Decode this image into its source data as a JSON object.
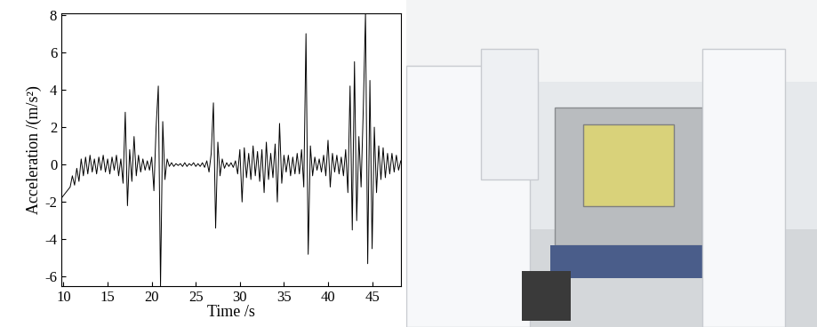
{
  "chart_data": {
    "type": "line",
    "x_label": "Time /s",
    "y_label": "Acceleration /(m/s²)",
    "color": "#000000",
    "xlim": [
      9.75,
      48.25
    ],
    "xticks": [
      10,
      15,
      20,
      25,
      30,
      35,
      40,
      45
    ],
    "ylim": [
      -6.5,
      8.1
    ],
    "yticks": [
      -6,
      -4,
      -2,
      0,
      2,
      4,
      6,
      8
    ],
    "grid": false,
    "x": [
      9.75,
      10.0,
      10.25,
      10.5,
      10.75,
      11.0,
      11.25,
      11.5,
      11.75,
      12.0,
      12.25,
      12.5,
      12.75,
      13.0,
      13.25,
      13.5,
      13.75,
      14.0,
      14.25,
      14.5,
      14.75,
      15.0,
      15.25,
      15.5,
      15.75,
      16.0,
      16.25,
      16.5,
      16.75,
      17.0,
      17.25,
      17.5,
      17.75,
      18.0,
      18.25,
      18.5,
      18.75,
      19.0,
      19.25,
      19.5,
      19.75,
      20.0,
      20.25,
      20.5,
      20.75,
      21.0,
      21.25,
      21.5,
      21.75,
      22.0,
      22.25,
      22.5,
      22.75,
      23.0,
      23.25,
      23.5,
      23.75,
      24.0,
      24.25,
      24.5,
      24.75,
      25.0,
      25.25,
      25.5,
      25.75,
      26.0,
      26.25,
      26.5,
      26.75,
      27.0,
      27.25,
      27.5,
      27.75,
      28.0,
      28.25,
      28.5,
      28.75,
      29.0,
      29.25,
      29.5,
      29.75,
      30.0,
      30.25,
      30.5,
      30.75,
      31.0,
      31.25,
      31.5,
      31.75,
      32.0,
      32.25,
      32.5,
      32.75,
      33.0,
      33.25,
      33.5,
      33.75,
      34.0,
      34.25,
      34.5,
      34.75,
      35.0,
      35.25,
      35.5,
      35.75,
      36.0,
      36.25,
      36.5,
      36.75,
      37.0,
      37.25,
      37.5,
      37.75,
      38.0,
      38.25,
      38.5,
      38.75,
      39.0,
      39.25,
      39.5,
      39.75,
      40.0,
      40.25,
      40.5,
      40.75,
      41.0,
      41.25,
      41.5,
      41.75,
      42.0,
      42.25,
      42.5,
      42.75,
      43.0,
      43.25,
      43.5,
      43.75,
      44.0,
      44.25,
      44.5,
      44.75,
      45.0,
      45.25,
      45.5,
      45.75,
      46.0,
      46.25,
      46.5,
      46.75,
      47.0,
      47.25,
      47.5,
      47.75,
      48.0,
      48.25
    ],
    "values": [
      -1.8,
      -1.65,
      -1.5,
      -1.35,
      -1.2,
      -0.6,
      -1.1,
      -0.2,
      -0.9,
      0.3,
      -0.6,
      0.4,
      -0.5,
      0.5,
      -0.4,
      0.3,
      -0.5,
      0.4,
      -0.3,
      0.5,
      -0.4,
      0.3,
      -0.5,
      0.4,
      -0.3,
      0.5,
      -0.6,
      0.3,
      -1.0,
      2.8,
      -2.2,
      0.8,
      -0.9,
      1.5,
      -0.6,
      0.5,
      -0.4,
      0.3,
      -0.3,
      0.2,
      -0.3,
      0.4,
      -1.4,
      2.0,
      4.2,
      -6.5,
      2.3,
      -0.8,
      0.3,
      -0.1,
      0.1,
      -0.1,
      0.05,
      -0.05,
      0.05,
      -0.1,
      0.1,
      -0.1,
      0.05,
      -0.05,
      0.1,
      -0.1,
      0.05,
      -0.1,
      0.1,
      -0.15,
      0.2,
      -0.4,
      0.6,
      3.3,
      -3.4,
      1.2,
      -0.6,
      0.3,
      -0.2,
      0.1,
      -0.1,
      0.1,
      -0.15,
      0.2,
      -0.5,
      0.8,
      -2.0,
      0.9,
      -0.7,
      0.6,
      -0.8,
      1.0,
      -0.6,
      0.7,
      -0.9,
      0.8,
      -1.5,
      1.2,
      -0.8,
      0.6,
      -0.7,
      1.1,
      -2.0,
      2.2,
      -1.0,
      0.5,
      -0.4,
      0.5,
      -0.6,
      0.4,
      -0.5,
      0.6,
      -0.5,
      0.8,
      -1.2,
      7.0,
      -4.8,
      1.0,
      -0.6,
      0.4,
      -0.3,
      0.3,
      -0.4,
      0.5,
      -0.6,
      1.3,
      -1.2,
      0.6,
      -0.4,
      0.5,
      -0.5,
      0.4,
      -0.6,
      0.8,
      -1.5,
      4.2,
      -3.5,
      5.5,
      -3.0,
      1.5,
      -1.2,
      3.0,
      8.1,
      -5.3,
      4.5,
      -4.5,
      2.0,
      -1.5,
      1.0,
      -0.8,
      0.9,
      -0.7,
      0.6,
      -0.5,
      0.6,
      -0.4,
      0.5,
      -0.3,
      0.2
    ]
  }
}
